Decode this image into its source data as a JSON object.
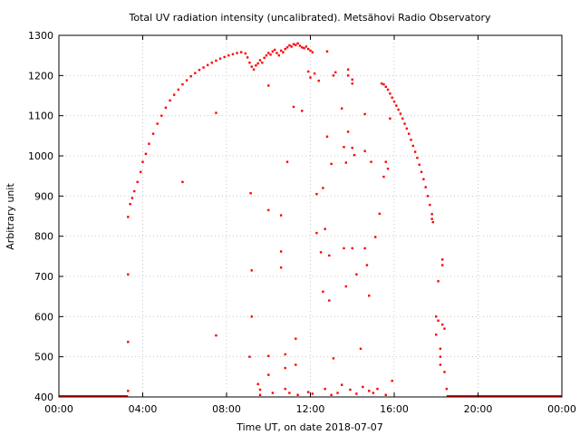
{
  "chart_data": {
    "type": "scatter",
    "title": "Total UV radiation intensity (uncalibrated). Metsähovi Radio Observatory",
    "xlabel": "Time UT, on date 2018-07-07",
    "ylabel": "Arbitrary unit",
    "xlim": [
      0,
      24
    ],
    "ylim": [
      400,
      1300
    ],
    "x_ticks": [
      {
        "value": 0,
        "label": "00:00"
      },
      {
        "value": 4,
        "label": "04:00"
      },
      {
        "value": 8,
        "label": "08:00"
      },
      {
        "value": 12,
        "label": "12:00"
      },
      {
        "value": 16,
        "label": "16:00"
      },
      {
        "value": 20,
        "label": "20:00"
      },
      {
        "value": 24,
        "label": "00:00"
      }
    ],
    "y_ticks": [
      400,
      500,
      600,
      700,
      800,
      900,
      1000,
      1100,
      1200,
      1300
    ],
    "grid": true,
    "marker_color": "#ff0000",
    "series": [
      {
        "points": [
          [
            3.4,
            880
          ],
          [
            3.5,
            895
          ],
          [
            3.6,
            912
          ],
          [
            3.75,
            935
          ],
          [
            3.9,
            960
          ],
          [
            4.0,
            985
          ],
          [
            4.15,
            1005
          ],
          [
            4.3,
            1030
          ],
          [
            4.5,
            1055
          ],
          [
            4.7,
            1080
          ],
          [
            4.9,
            1100
          ],
          [
            5.1,
            1120
          ],
          [
            5.3,
            1138
          ],
          [
            5.5,
            1152
          ],
          [
            5.7,
            1165
          ],
          [
            5.9,
            1178
          ],
          [
            6.1,
            1188
          ],
          [
            6.3,
            1198
          ],
          [
            6.5,
            1206
          ],
          [
            6.7,
            1214
          ],
          [
            6.9,
            1220
          ],
          [
            7.1,
            1226
          ],
          [
            7.3,
            1232
          ],
          [
            7.5,
            1237
          ],
          [
            7.7,
            1242
          ],
          [
            7.9,
            1246
          ],
          [
            8.1,
            1250
          ],
          [
            8.3,
            1253
          ],
          [
            8.5,
            1256
          ],
          [
            8.7,
            1258
          ],
          [
            8.9,
            1255
          ],
          [
            9.0,
            1245
          ],
          [
            9.1,
            1232
          ],
          [
            9.2,
            1222
          ],
          [
            9.3,
            1215
          ],
          [
            9.4,
            1225
          ],
          [
            9.5,
            1230
          ],
          [
            9.6,
            1238
          ],
          [
            9.7,
            1232
          ],
          [
            9.8,
            1244
          ],
          [
            9.9,
            1250
          ],
          [
            10.0,
            1256
          ],
          [
            10.1,
            1252
          ],
          [
            10.2,
            1260
          ],
          [
            10.3,
            1264
          ],
          [
            10.4,
            1256
          ],
          [
            10.5,
            1250
          ],
          [
            10.6,
            1262
          ],
          [
            10.7,
            1258
          ],
          [
            10.8,
            1266
          ],
          [
            10.9,
            1270
          ],
          [
            11.0,
            1275
          ],
          [
            11.1,
            1272
          ],
          [
            11.2,
            1278
          ],
          [
            11.3,
            1276
          ],
          [
            11.4,
            1280
          ],
          [
            11.5,
            1274
          ],
          [
            11.6,
            1270
          ],
          [
            11.7,
            1268
          ],
          [
            11.8,
            1272
          ],
          [
            11.9,
            1266
          ],
          [
            12.0,
            1262
          ],
          [
            12.1,
            1258
          ],
          [
            15.5,
            1178
          ],
          [
            15.6,
            1172
          ],
          [
            15.7,
            1165
          ],
          [
            15.8,
            1155
          ],
          [
            15.9,
            1145
          ],
          [
            16.0,
            1135
          ],
          [
            16.1,
            1125
          ],
          [
            16.2,
            1115
          ],
          [
            16.3,
            1105
          ],
          [
            16.4,
            1093
          ],
          [
            16.5,
            1080
          ],
          [
            16.6,
            1068
          ],
          [
            16.7,
            1055
          ],
          [
            16.8,
            1040
          ],
          [
            16.9,
            1025
          ],
          [
            17.0,
            1010
          ],
          [
            17.1,
            995
          ],
          [
            17.2,
            978
          ],
          [
            17.3,
            960
          ],
          [
            17.4,
            942
          ],
          [
            17.5,
            922
          ],
          [
            17.6,
            900
          ],
          [
            17.7,
            878
          ],
          [
            17.8,
            855
          ],
          [
            17.85,
            835
          ],
          [
            3.3,
            848
          ],
          [
            3.3,
            705
          ],
          [
            3.3,
            537
          ],
          [
            3.3,
            415
          ],
          [
            5.9,
            935
          ],
          [
            7.5,
            1107
          ],
          [
            7.5,
            553
          ],
          [
            9.15,
            907
          ],
          [
            9.2,
            600
          ],
          [
            9.2,
            715
          ],
          [
            9.1,
            500
          ],
          [
            9.5,
            432
          ],
          [
            9.6,
            418
          ],
          [
            10.0,
            1175
          ],
          [
            10.0,
            865
          ],
          [
            10.0,
            502
          ],
          [
            10.0,
            455
          ],
          [
            10.6,
            852
          ],
          [
            10.6,
            722
          ],
          [
            10.6,
            762
          ],
          [
            10.9,
            985
          ],
          [
            10.8,
            506
          ],
          [
            10.8,
            472
          ],
          [
            11.2,
            1122
          ],
          [
            11.3,
            545
          ],
          [
            11.3,
            480
          ],
          [
            11.6,
            1112
          ],
          [
            11.9,
            1210
          ],
          [
            12.0,
            1195
          ],
          [
            12.2,
            1205
          ],
          [
            12.3,
            905
          ],
          [
            12.3,
            808
          ],
          [
            12.4,
            1187
          ],
          [
            12.5,
            760
          ],
          [
            12.6,
            920
          ],
          [
            12.6,
            662
          ],
          [
            12.7,
            818
          ],
          [
            12.8,
            1260
          ],
          [
            12.8,
            1048
          ],
          [
            12.9,
            752
          ],
          [
            12.9,
            640
          ],
          [
            13.0,
            980
          ],
          [
            13.1,
            1200
          ],
          [
            13.1,
            496
          ],
          [
            13.2,
            1208
          ],
          [
            13.5,
            1118
          ],
          [
            13.6,
            1022
          ],
          [
            13.6,
            770
          ],
          [
            13.7,
            983
          ],
          [
            13.7,
            675
          ],
          [
            13.8,
            1060
          ],
          [
            13.8,
            1215
          ],
          [
            13.8,
            1200
          ],
          [
            14.0,
            1190
          ],
          [
            14.0,
            1180
          ],
          [
            14.0,
            1020
          ],
          [
            14.0,
            770
          ],
          [
            14.1,
            1002
          ],
          [
            14.2,
            705
          ],
          [
            14.4,
            520
          ],
          [
            14.6,
            1104
          ],
          [
            14.6,
            1012
          ],
          [
            14.6,
            770
          ],
          [
            14.7,
            728
          ],
          [
            14.8,
            652
          ],
          [
            14.9,
            985
          ],
          [
            15.1,
            798
          ],
          [
            15.3,
            856
          ],
          [
            15.4,
            1180
          ],
          [
            15.5,
            948
          ],
          [
            15.6,
            985
          ],
          [
            15.7,
            968
          ],
          [
            15.8,
            1093
          ],
          [
            15.9,
            440
          ],
          [
            17.8,
            843
          ],
          [
            18.0,
            600
          ],
          [
            18.0,
            555
          ],
          [
            18.1,
            688
          ],
          [
            18.1,
            590
          ],
          [
            18.2,
            520
          ],
          [
            18.2,
            500
          ],
          [
            18.3,
            742
          ],
          [
            18.3,
            728
          ],
          [
            18.3,
            580
          ],
          [
            18.4,
            570
          ],
          [
            18.2,
            480
          ],
          [
            18.4,
            462
          ],
          [
            18.5,
            420
          ],
          [
            10.8,
            420
          ],
          [
            11.0,
            410
          ],
          [
            11.4,
            405
          ],
          [
            11.9,
            412
          ],
          [
            12.1,
            408
          ],
          [
            12.7,
            420
          ],
          [
            13.0,
            405
          ],
          [
            13.3,
            410
          ],
          [
            13.5,
            430
          ],
          [
            13.9,
            418
          ],
          [
            14.2,
            408
          ],
          [
            14.5,
            425
          ],
          [
            14.8,
            415
          ],
          [
            15.0,
            410
          ],
          [
            15.2,
            420
          ],
          [
            15.6,
            405
          ],
          [
            9.6,
            405
          ],
          [
            10.2,
            410
          ]
        ]
      }
    ],
    "baseline_segments": [
      [
        0,
        3.3
      ],
      [
        18.5,
        24
      ]
    ],
    "baseline_value": 400
  }
}
